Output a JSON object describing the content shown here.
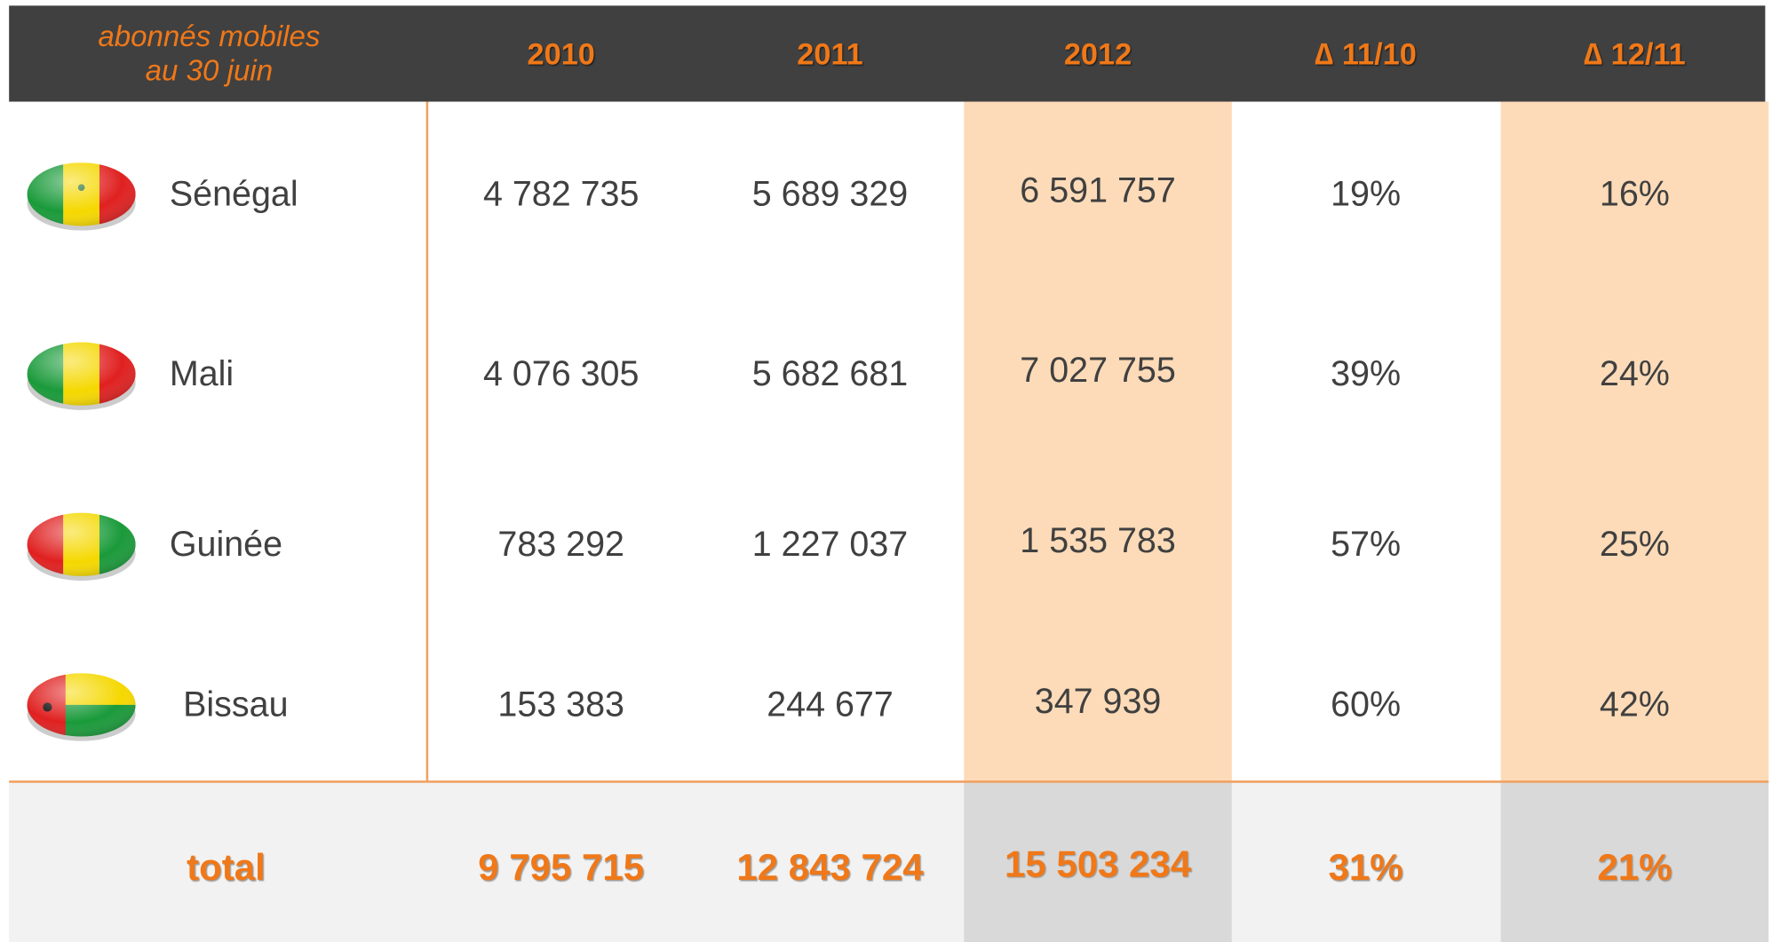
{
  "table": {
    "caption": [
      "abonnés mobiles",
      "au 30 juin"
    ],
    "columns": [
      "2010",
      "2011",
      "2012",
      "∆ 11/10",
      "∆ 12/11"
    ],
    "rows": [
      [
        "Sénégal",
        "4 782 735",
        "5 689 329",
        "6 591 757",
        "19%",
        "16%"
      ],
      [
        "Mali",
        "4 076 305",
        "5 682 681",
        "7 027 755",
        "39%",
        "24%"
      ],
      [
        "Guinée",
        "783 292",
        "1 227 037",
        "1 535 783",
        "57%",
        "25%"
      ],
      [
        "Bissau",
        "153 383",
        "244 677",
        "347 939",
        "60%",
        "42%"
      ]
    ],
    "total": [
      "total",
      "9 795 715",
      "12 843 724",
      "15 503 234",
      "31%",
      "21%"
    ]
  }
}
